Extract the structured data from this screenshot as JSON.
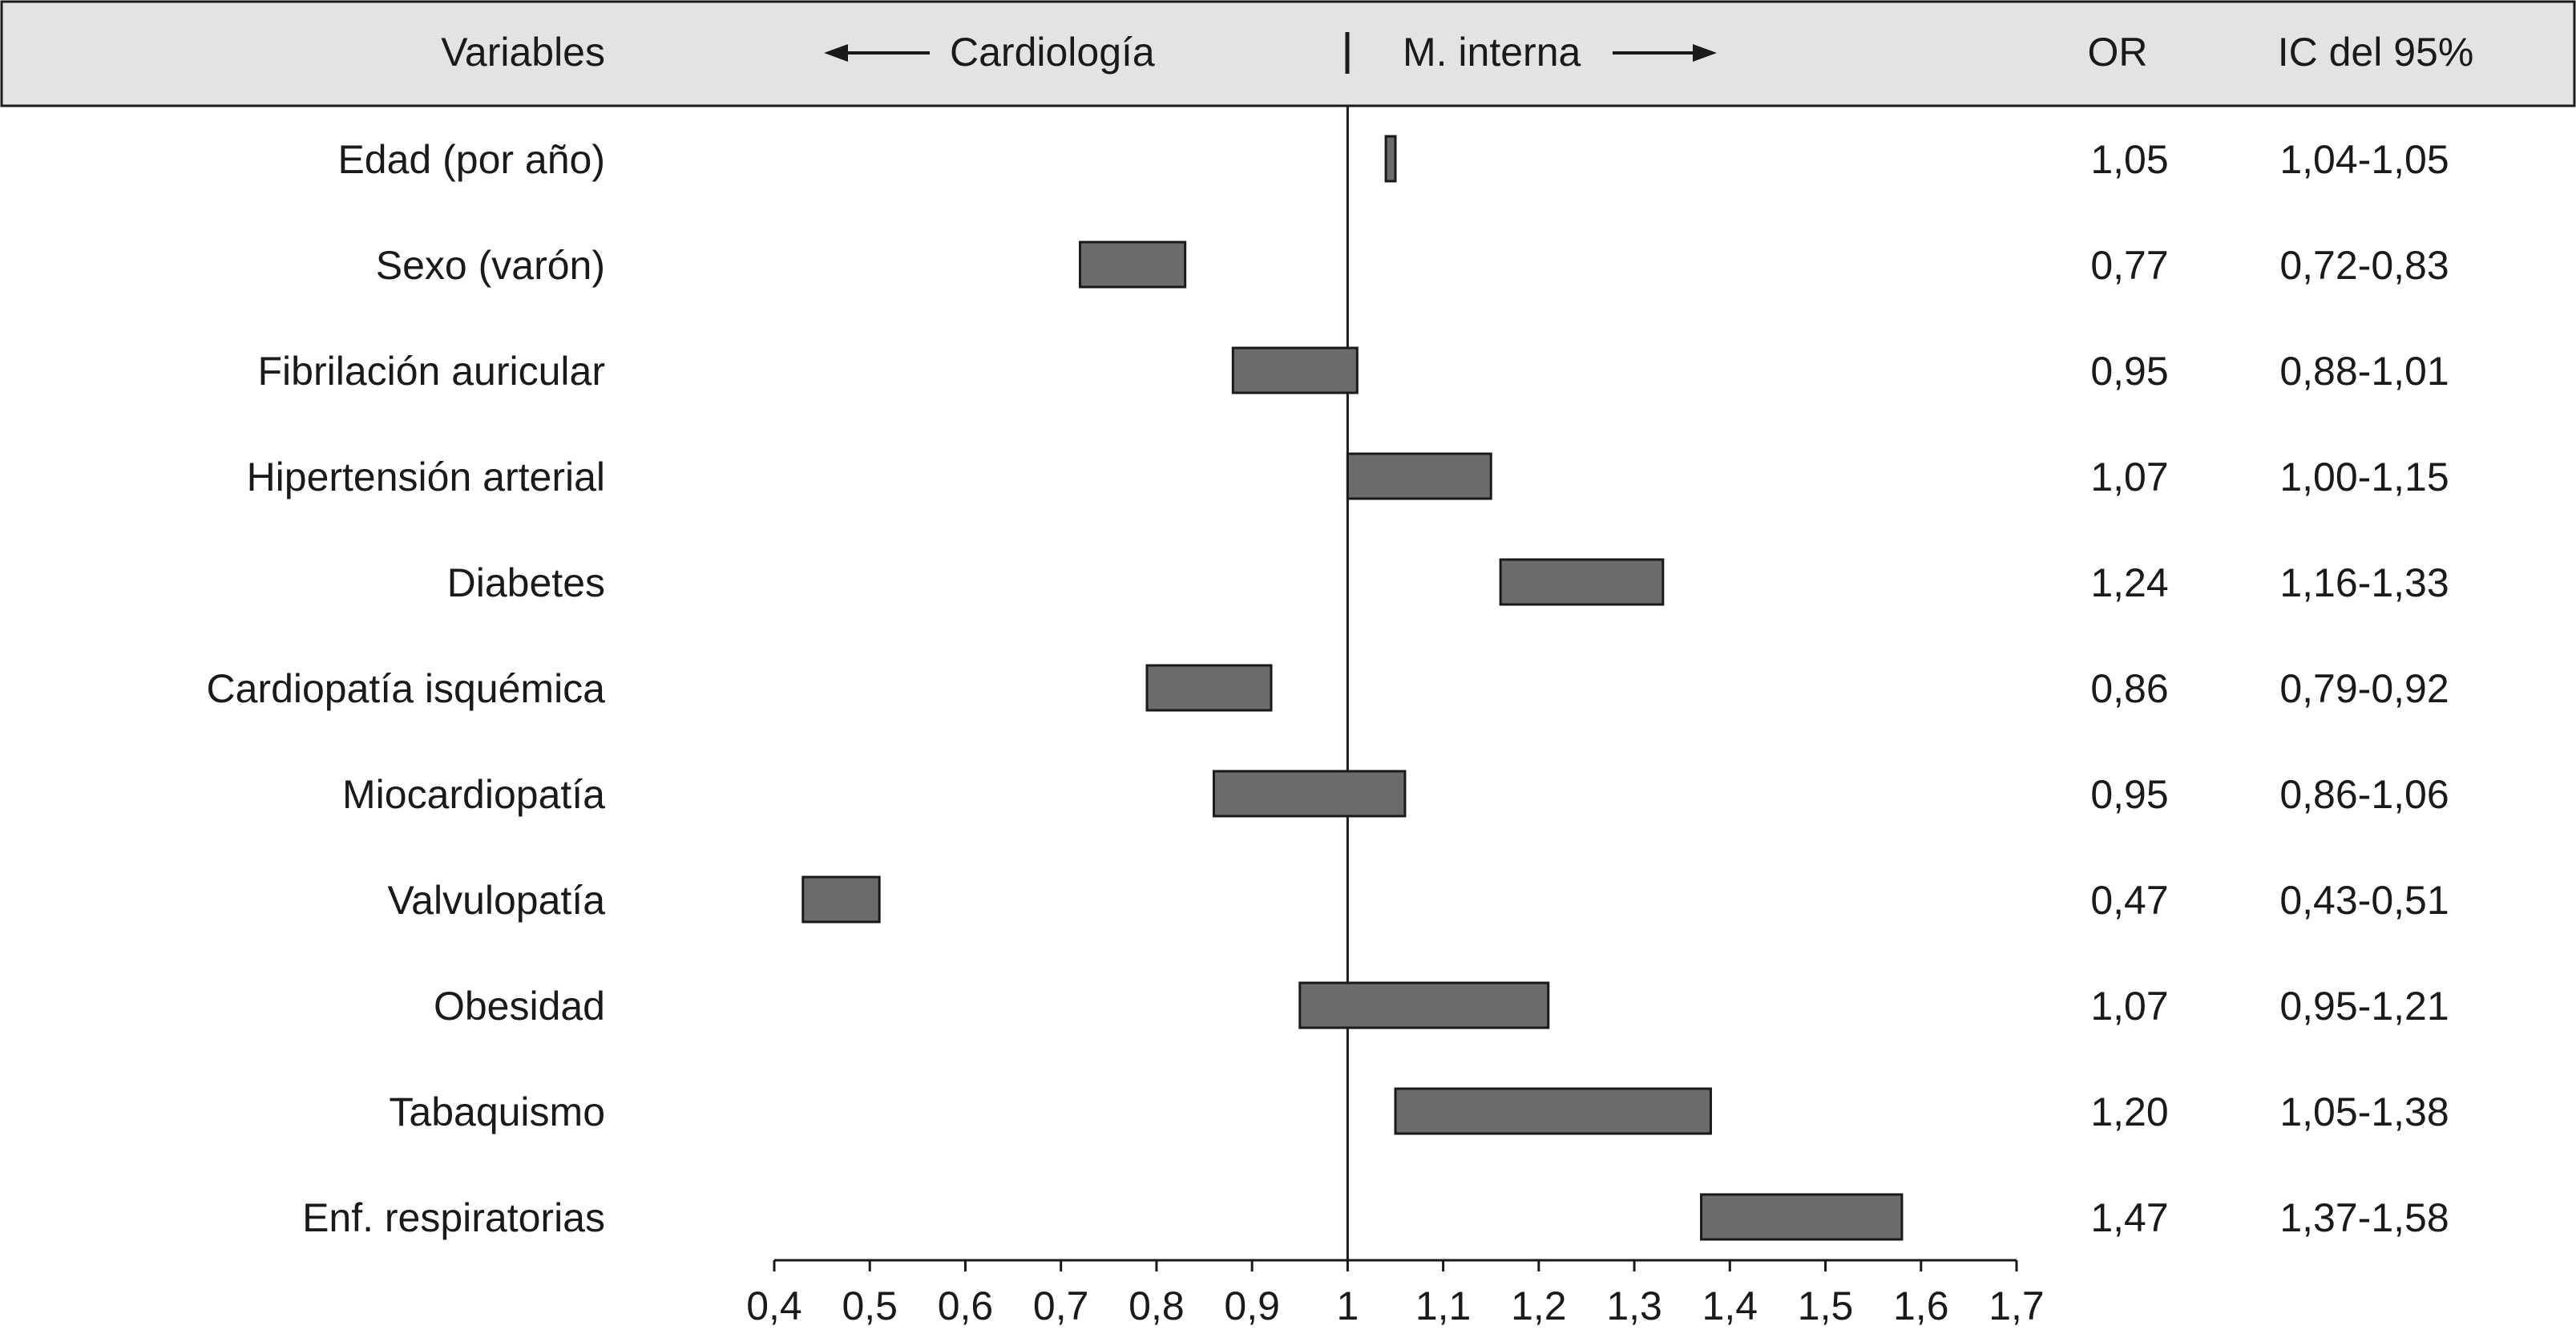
{
  "header": {
    "variables_label": "Variables",
    "left_direction_label": "Cardiología",
    "right_direction_label": "M. interna",
    "or_label": "OR",
    "ci_label": "IC del 95%"
  },
  "chart_data": {
    "type": "forest",
    "title": "",
    "xlabel": "",
    "ylabel": "",
    "reference_value": 1,
    "xlim": [
      0.4,
      1.7
    ],
    "xticks": [
      0.4,
      0.5,
      0.6,
      0.7,
      0.8,
      0.9,
      1.0,
      1.1,
      1.2,
      1.3,
      1.4,
      1.5,
      1.6,
      1.7
    ],
    "xtick_labels": [
      "0,4",
      "0,5",
      "0,6",
      "0,7",
      "0,8",
      "0,9",
      "1",
      "1,1",
      "1,2",
      "1,3",
      "1,4",
      "1,5",
      "1,6",
      "1,7"
    ],
    "grid": false,
    "bar_color": "#6b6b6b",
    "rows": [
      {
        "variable": "Edad (por año)",
        "or": 1.05,
        "ci_low": 1.04,
        "ci_high": 1.05,
        "or_text": "1,05",
        "ci_text": "1,04-1,05"
      },
      {
        "variable": "Sexo (varón)",
        "or": 0.77,
        "ci_low": 0.72,
        "ci_high": 0.83,
        "or_text": "0,77",
        "ci_text": "0,72-0,83"
      },
      {
        "variable": "Fibrilación auricular",
        "or": 0.95,
        "ci_low": 0.88,
        "ci_high": 1.01,
        "or_text": "0,95",
        "ci_text": "0,88-1,01"
      },
      {
        "variable": "Hipertensión arterial",
        "or": 1.07,
        "ci_low": 1.0,
        "ci_high": 1.15,
        "or_text": "1,07",
        "ci_text": "1,00-1,15"
      },
      {
        "variable": "Diabetes",
        "or": 1.24,
        "ci_low": 1.16,
        "ci_high": 1.33,
        "or_text": "1,24",
        "ci_text": "1,16-1,33"
      },
      {
        "variable": "Cardiopatía isquémica",
        "or": 0.86,
        "ci_low": 0.79,
        "ci_high": 0.92,
        "or_text": "0,86",
        "ci_text": "0,79-0,92"
      },
      {
        "variable": "Miocardiopatía",
        "or": 0.95,
        "ci_low": 0.86,
        "ci_high": 1.06,
        "or_text": "0,95",
        "ci_text": "0,86-1,06"
      },
      {
        "variable": "Valvulopatía",
        "or": 0.47,
        "ci_low": 0.43,
        "ci_high": 0.51,
        "or_text": "0,47",
        "ci_text": "0,43-0,51"
      },
      {
        "variable": "Obesidad",
        "or": 1.07,
        "ci_low": 0.95,
        "ci_high": 1.21,
        "or_text": "1,07",
        "ci_text": "0,95-1,21"
      },
      {
        "variable": "Tabaquismo",
        "or": 1.2,
        "ci_low": 1.05,
        "ci_high": 1.38,
        "or_text": "1,20",
        "ci_text": "1,05-1,38"
      },
      {
        "variable": "Enf. respiratorias",
        "or": 1.47,
        "ci_low": 1.37,
        "ci_high": 1.58,
        "or_text": "1,47",
        "ci_text": "1,37-1,58"
      }
    ]
  }
}
